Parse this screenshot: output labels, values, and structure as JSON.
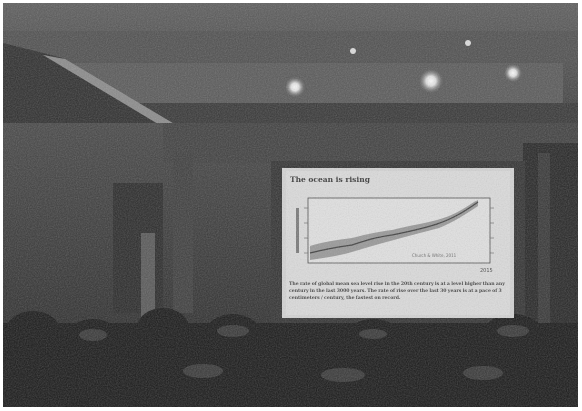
{
  "slide": {
    "title": "The ocean is rising",
    "caption": "The rate of global mean sea level rise in the 20th century is at a level higher than any century in the last 3000 years. The rate of rise over the last 30 years is at a pace of 3 centimeters / century, the fastest on record.",
    "source_note": "Church & White, 2011",
    "x_tick_end": "2015"
  },
  "colors": {
    "slide_background": "#d9d9d9",
    "room_dark": "#1c1c1c",
    "sea_level_band": "#8a8a8a"
  }
}
